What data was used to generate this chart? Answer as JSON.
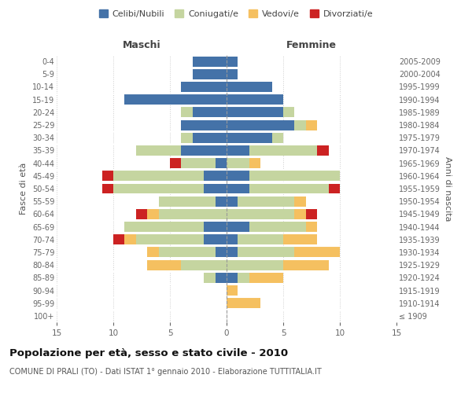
{
  "age_groups": [
    "100+",
    "95-99",
    "90-94",
    "85-89",
    "80-84",
    "75-79",
    "70-74",
    "65-69",
    "60-64",
    "55-59",
    "50-54",
    "45-49",
    "40-44",
    "35-39",
    "30-34",
    "25-29",
    "20-24",
    "15-19",
    "10-14",
    "5-9",
    "0-4"
  ],
  "birth_years": [
    "≤ 1909",
    "1910-1914",
    "1915-1919",
    "1920-1924",
    "1925-1929",
    "1930-1934",
    "1935-1939",
    "1940-1944",
    "1945-1949",
    "1950-1954",
    "1955-1959",
    "1960-1964",
    "1965-1969",
    "1970-1974",
    "1975-1979",
    "1980-1984",
    "1985-1989",
    "1990-1994",
    "1995-1999",
    "2000-2004",
    "2005-2009"
  ],
  "maschi_celibe": [
    0,
    0,
    0,
    1,
    0,
    1,
    2,
    2,
    0,
    1,
    2,
    2,
    1,
    4,
    3,
    4,
    3,
    9,
    4,
    3,
    3
  ],
  "maschi_coniugato": [
    0,
    0,
    0,
    1,
    4,
    5,
    6,
    7,
    6,
    5,
    8,
    8,
    3,
    4,
    1,
    0,
    1,
    0,
    0,
    0,
    0
  ],
  "maschi_vedovo": [
    0,
    0,
    0,
    0,
    3,
    1,
    1,
    0,
    1,
    0,
    0,
    0,
    0,
    0,
    0,
    0,
    0,
    0,
    0,
    0,
    0
  ],
  "maschi_divorziato": [
    0,
    0,
    0,
    0,
    0,
    0,
    1,
    0,
    1,
    0,
    1,
    1,
    1,
    0,
    0,
    0,
    0,
    0,
    0,
    0,
    0
  ],
  "femmine_celibe": [
    0,
    0,
    0,
    1,
    0,
    1,
    1,
    2,
    0,
    1,
    2,
    2,
    0,
    2,
    4,
    6,
    5,
    5,
    4,
    1,
    1
  ],
  "femmine_coniugato": [
    0,
    0,
    0,
    1,
    5,
    5,
    4,
    5,
    6,
    5,
    7,
    8,
    2,
    6,
    1,
    1,
    1,
    0,
    0,
    0,
    0
  ],
  "femmine_vedovo": [
    0,
    3,
    1,
    3,
    4,
    4,
    3,
    1,
    1,
    1,
    0,
    0,
    1,
    0,
    0,
    1,
    0,
    0,
    0,
    0,
    0
  ],
  "femmine_divorziato": [
    0,
    0,
    0,
    0,
    0,
    0,
    0,
    0,
    1,
    0,
    1,
    0,
    0,
    1,
    0,
    0,
    0,
    0,
    0,
    0,
    0
  ],
  "color_celibe": "#4472a8",
  "color_coniugato": "#c5d5a0",
  "color_vedovo": "#f5c060",
  "color_divorziato": "#cc2222",
  "xlim": 15,
  "title": "Popolazione per età, sesso e stato civile - 2010",
  "subtitle": "COMUNE DI PRALI (TO) - Dati ISTAT 1° gennaio 2010 - Elaborazione TUTTITALIA.IT",
  "ylabel_left": "Fasce di età",
  "ylabel_right": "Anni di nascita",
  "xlabel_maschi": "Maschi",
  "xlabel_femmine": "Femmine",
  "legend_labels": [
    "Celibi/Nubili",
    "Coniugati/e",
    "Vedovi/e",
    "Divorziati/e"
  ],
  "bg_color": "#ffffff"
}
